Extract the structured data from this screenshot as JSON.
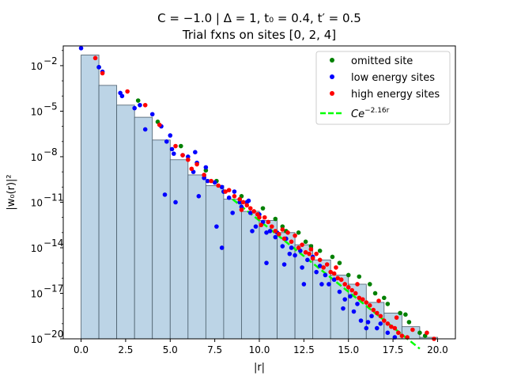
{
  "chart_data": {
    "type": "scatter",
    "title_line1": "C = −1.0 | Δ = 1,  t₀ = 0.4,  t′ = 0.5",
    "title_line2": "Trial fxns on sites [0, 2, 4]",
    "xlabel": "|r|",
    "ylabel": "|w₀(r)|²",
    "xlim": [
      -1.0,
      21.0
    ],
    "ylog_exponent_range": [
      -20,
      -0.7
    ],
    "y_scale": "log",
    "x_ticks": [
      0.0,
      2.5,
      5.0,
      7.5,
      10.0,
      12.5,
      15.0,
      17.5,
      20.0
    ],
    "x_tick_labels": [
      "0.0",
      "2.5",
      "5.0",
      "7.5",
      "10.0",
      "12.5",
      "15.0",
      "17.5",
      "20.0"
    ],
    "y_tick_exponents": [
      -20,
      -17,
      -14,
      -11,
      -8,
      -5,
      -2
    ],
    "y_tick_labels": [
      "10",
      "10",
      "10",
      "10",
      "10",
      "10",
      "10"
    ],
    "y_tick_superscripts": [
      "−20",
      "−17",
      "−14",
      "−11",
      "−8",
      "−5",
      "−2"
    ],
    "histogram": {
      "color": "#bcd4e6",
      "edge_color": "#4a5d6b",
      "bin_edges": [
        0,
        1,
        2,
        3,
        4,
        5,
        6,
        7,
        8,
        9,
        10,
        11,
        12,
        13,
        14,
        15,
        16,
        17,
        18,
        19,
        20
      ],
      "log10_heights": [
        -1.3,
        -3.3,
        -4.6,
        -5.4,
        -6.9,
        -8.2,
        -9.2,
        -9.9,
        -10.8,
        -11.6,
        -12.2,
        -13.0,
        -13.8,
        -14.8,
        -15.8,
        -16.4,
        -17.6,
        -18.3,
        -19.2,
        -19.9
      ]
    },
    "fit": {
      "name": "Ce^{−2.16r}",
      "label_base": "Ce",
      "label_exp": "−2.16r",
      "color": "#00ff00",
      "x_range": [
        8.5,
        19.0
      ],
      "log10_at_start": -10.8,
      "log10_slope": -0.938
    },
    "series": [
      {
        "name": "omitted site",
        "color": "#008000",
        "points": [
          [
            1.0,
            -2.1
          ],
          [
            3.2,
            -4.3
          ],
          [
            4.3,
            -5.7
          ],
          [
            5.6,
            -7.3
          ],
          [
            7.0,
            -8.9
          ],
          [
            7.6,
            -9.6
          ],
          [
            8.0,
            -10.3
          ],
          [
            9.0,
            -10.6
          ],
          [
            10.2,
            -11.4
          ],
          [
            10.9,
            -12.1
          ],
          [
            11.3,
            -12.6
          ],
          [
            11.5,
            -12.9
          ],
          [
            12.2,
            -13.0
          ],
          [
            12.6,
            -13.6
          ],
          [
            12.9,
            -13.9
          ],
          [
            13.4,
            -14.2
          ],
          [
            14.1,
            -14.6
          ],
          [
            14.5,
            -15.0
          ],
          [
            15.0,
            -15.8
          ],
          [
            15.6,
            -15.9
          ],
          [
            16.2,
            -16.4
          ],
          [
            16.5,
            -17.0
          ],
          [
            17.0,
            -17.3
          ],
          [
            17.2,
            -17.7
          ],
          [
            17.9,
            -18.3
          ],
          [
            18.2,
            -18.4
          ],
          [
            18.4,
            -18.9
          ],
          [
            19.0,
            -19.6
          ],
          [
            19.3,
            -19.8
          ]
        ]
      },
      {
        "name": "low energy sites",
        "color": "#0000ff",
        "points": [
          [
            0.0,
            -0.85
          ],
          [
            1.0,
            -2.1
          ],
          [
            1.2,
            -2.4
          ],
          [
            2.2,
            -3.8
          ],
          [
            2.3,
            -4.0
          ],
          [
            3.0,
            -4.8
          ],
          [
            3.3,
            -4.6
          ],
          [
            4.0,
            -5.2
          ],
          [
            4.5,
            -6.0
          ],
          [
            4.8,
            -7.0
          ],
          [
            5.0,
            -6.6
          ],
          [
            5.1,
            -7.5
          ],
          [
            5.2,
            -7.8
          ],
          [
            5.7,
            -7.9
          ],
          [
            6.0,
            -8.0
          ],
          [
            6.3,
            -9.0
          ],
          [
            6.4,
            -7.7
          ],
          [
            6.5,
            -8.4
          ],
          [
            6.9,
            -9.4
          ],
          [
            7.0,
            -8.7
          ],
          [
            7.1,
            -9.6
          ],
          [
            7.5,
            -9.7
          ],
          [
            7.9,
            -10.0
          ],
          [
            8.0,
            -10.3
          ],
          [
            8.3,
            -10.7
          ],
          [
            8.5,
            -11.7
          ],
          [
            8.6,
            -10.3
          ],
          [
            8.9,
            -11.0
          ],
          [
            9.0,
            -11.3
          ],
          [
            9.3,
            -11.0
          ],
          [
            9.4,
            -10.9
          ],
          [
            9.5,
            -11.7
          ],
          [
            9.8,
            -12.6
          ],
          [
            10.0,
            -11.8
          ],
          [
            10.2,
            -12.3
          ],
          [
            10.4,
            -13.0
          ],
          [
            10.6,
            -12.9
          ],
          [
            10.9,
            -13.3
          ],
          [
            11.0,
            -13.0
          ],
          [
            11.3,
            -13.9
          ],
          [
            11.5,
            -13.4
          ],
          [
            11.8,
            -14.0
          ],
          [
            12.0,
            -14.5
          ],
          [
            12.3,
            -14.2
          ],
          [
            12.4,
            -15.3
          ],
          [
            12.7,
            -14.8
          ],
          [
            13.0,
            -14.6
          ],
          [
            13.2,
            -15.6
          ],
          [
            13.4,
            -15.2
          ],
          [
            13.7,
            -15.8
          ],
          [
            13.9,
            -16.4
          ],
          [
            14.2,
            -16.1
          ],
          [
            14.5,
            -16.9
          ],
          [
            14.8,
            -17.4
          ],
          [
            15.1,
            -17.2
          ],
          [
            15.3,
            -18.2
          ],
          [
            15.5,
            -17.7
          ],
          [
            15.7,
            -18.8
          ],
          [
            16.1,
            -18.9
          ],
          [
            16.3,
            -18.5
          ],
          [
            16.6,
            -19.3
          ],
          [
            16.8,
            -19.0
          ],
          [
            17.2,
            -19.6
          ],
          [
            17.6,
            -19.9
          ],
          [
            3.6,
            -6.2
          ],
          [
            6.6,
            -10.6
          ],
          [
            5.3,
            -11.0
          ],
          [
            4.7,
            -10.5
          ],
          [
            7.9,
            -14.0
          ],
          [
            10.4,
            -15.0
          ],
          [
            12.5,
            -16.4
          ],
          [
            14.7,
            -18.0
          ],
          [
            13.5,
            -16.4
          ],
          [
            11.4,
            -15.1
          ],
          [
            16.0,
            -19.3
          ],
          [
            7.6,
            -12.6
          ],
          [
            9.6,
            -12.9
          ],
          [
            11.7,
            -14.4
          ]
        ]
      },
      {
        "name": "high energy sites",
        "color": "#ff0000",
        "points": [
          [
            0.8,
            -1.5
          ],
          [
            1.2,
            -2.5
          ],
          [
            2.6,
            -3.7
          ],
          [
            3.6,
            -4.6
          ],
          [
            4.4,
            -5.9
          ],
          [
            5.3,
            -7.3
          ],
          [
            5.7,
            -7.9
          ],
          [
            6.0,
            -8.2
          ],
          [
            6.2,
            -8.8
          ],
          [
            6.5,
            -8.5
          ],
          [
            6.9,
            -9.2
          ],
          [
            7.3,
            -9.6
          ],
          [
            7.7,
            -9.9
          ],
          [
            8.1,
            -10.3
          ],
          [
            8.3,
            -10.2
          ],
          [
            8.6,
            -10.6
          ],
          [
            8.9,
            -10.8
          ],
          [
            9.1,
            -11.0
          ],
          [
            9.3,
            -11.2
          ],
          [
            9.5,
            -11.4
          ],
          [
            9.7,
            -11.6
          ],
          [
            9.9,
            -11.8
          ],
          [
            10.0,
            -12.0
          ],
          [
            10.3,
            -12.0
          ],
          [
            10.5,
            -12.3
          ],
          [
            10.7,
            -12.6
          ],
          [
            10.9,
            -12.9
          ],
          [
            11.1,
            -13.1
          ],
          [
            11.3,
            -12.8
          ],
          [
            11.6,
            -13.0
          ],
          [
            11.8,
            -13.6
          ],
          [
            12.0,
            -13.2
          ],
          [
            12.2,
            -14.0
          ],
          [
            12.4,
            -13.8
          ],
          [
            12.6,
            -14.3
          ],
          [
            12.8,
            -14.4
          ],
          [
            13.0,
            -14.7
          ],
          [
            13.2,
            -14.4
          ],
          [
            13.4,
            -14.8
          ],
          [
            13.6,
            -15.3
          ],
          [
            13.8,
            -15.1
          ],
          [
            14.0,
            -15.6
          ],
          [
            14.2,
            -15.7
          ],
          [
            14.4,
            -16.0
          ],
          [
            14.6,
            -16.1
          ],
          [
            14.8,
            -16.4
          ],
          [
            15.0,
            -16.6
          ],
          [
            15.2,
            -16.8
          ],
          [
            15.4,
            -17.0
          ],
          [
            15.6,
            -17.3
          ],
          [
            15.8,
            -17.4
          ],
          [
            16.0,
            -17.6
          ],
          [
            16.2,
            -17.8
          ],
          [
            16.4,
            -18.1
          ],
          [
            16.6,
            -18.3
          ],
          [
            16.8,
            -18.5
          ],
          [
            17.0,
            -18.8
          ],
          [
            17.2,
            -19.0
          ],
          [
            17.4,
            -19.2
          ],
          [
            17.6,
            -19.3
          ],
          [
            17.8,
            -19.6
          ],
          [
            18.0,
            -19.8
          ],
          [
            18.3,
            -19.9
          ],
          [
            19.4,
            -19.6
          ],
          [
            19.8,
            -20.0
          ],
          [
            9.0,
            -11.5
          ],
          [
            10.1,
            -12.5
          ],
          [
            11.4,
            -13.4
          ],
          [
            12.9,
            -14.1
          ],
          [
            14.3,
            -15.3
          ],
          [
            15.5,
            -16.4
          ],
          [
            16.7,
            -17.5
          ],
          [
            17.7,
            -18.6
          ],
          [
            18.6,
            -19.4
          ]
        ]
      }
    ],
    "legend": {
      "placement": "top-right",
      "entries": [
        "omitted site",
        "low energy sites",
        "high energy sites"
      ]
    }
  }
}
